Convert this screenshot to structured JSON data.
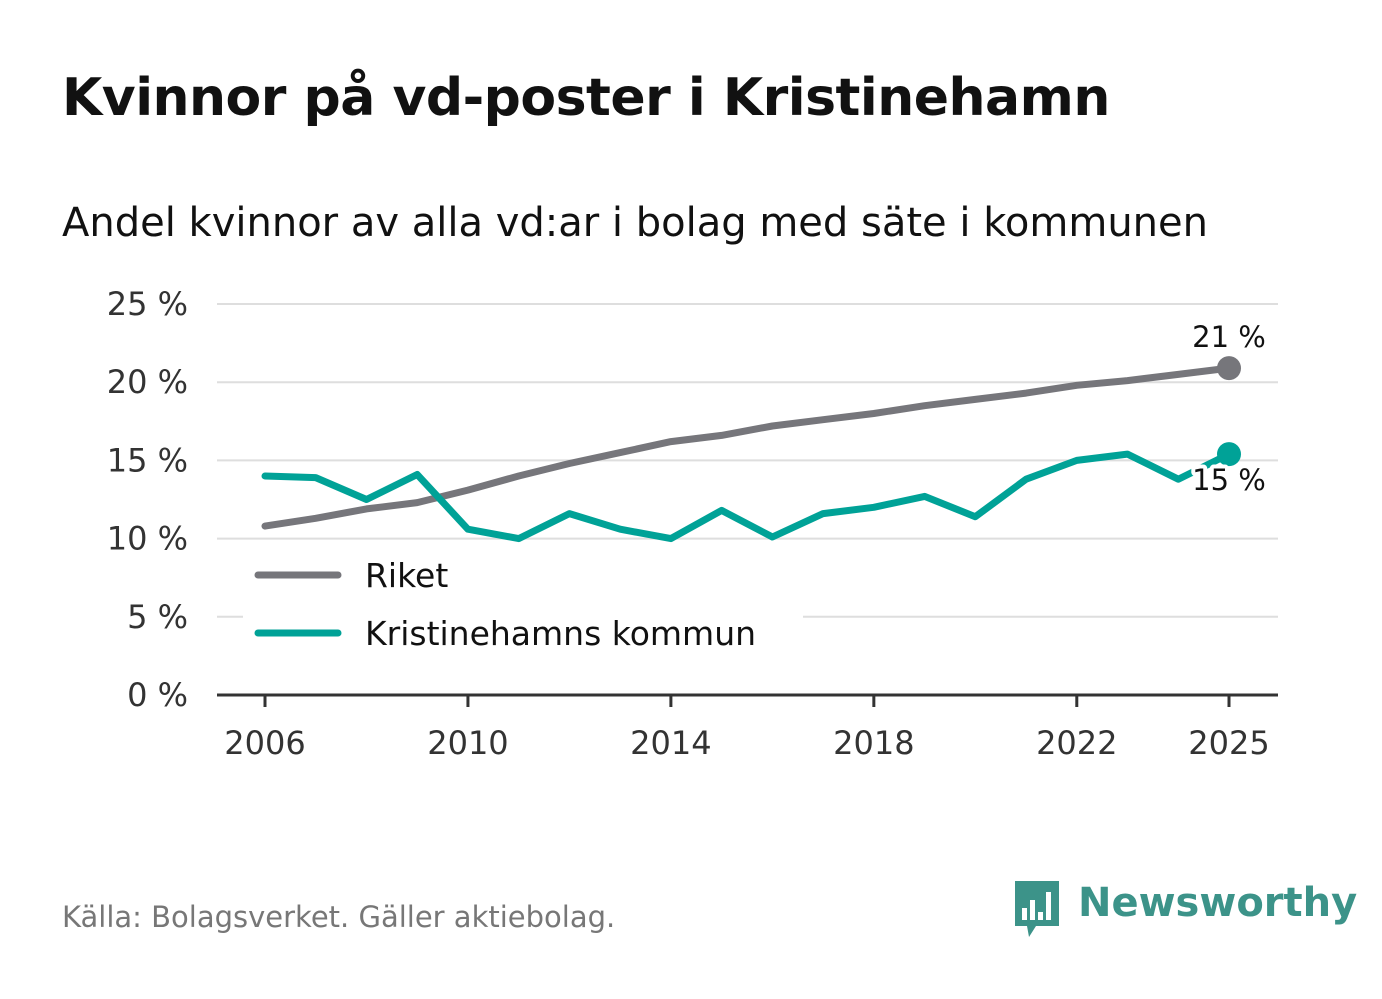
{
  "title": "Kvinnor på vd-poster i Kristinehamn",
  "subtitle": "Andel kvinnor av alla vd:ar i bolag med säte i kommunen",
  "source": "Källa: Bolagsverket. Gäller aktiebolag.",
  "brand": {
    "name": "Newsworthy",
    "logo_icon": "bar-chart-speech-bubble-icon",
    "color": "#3c9389"
  },
  "chart_data": {
    "type": "line",
    "x": [
      2006,
      2007,
      2008,
      2009,
      2010,
      2011,
      2012,
      2013,
      2014,
      2015,
      2016,
      2017,
      2018,
      2019,
      2020,
      2021,
      2022,
      2023,
      2024,
      2025
    ],
    "series": [
      {
        "name": "Riket",
        "color": "#76767b",
        "values": [
          10.8,
          11.3,
          11.9,
          12.3,
          13.1,
          14.0,
          14.8,
          15.5,
          16.2,
          16.6,
          17.2,
          17.6,
          18.0,
          18.5,
          18.9,
          19.3,
          19.8,
          20.1,
          20.5,
          20.9
        ],
        "end_label": "21 %"
      },
      {
        "name": "Kristinehamns kommun",
        "color": "#00a297",
        "values": [
          14.0,
          13.9,
          12.5,
          14.1,
          10.6,
          10.0,
          11.6,
          10.6,
          10.0,
          11.8,
          10.1,
          11.6,
          12.0,
          12.7,
          11.4,
          13.8,
          15.0,
          15.4,
          13.8,
          15.4
        ],
        "end_label": "15 %"
      }
    ],
    "xticks": [
      2006,
      2010,
      2014,
      2018,
      2022,
      2025
    ],
    "xtick_labels": [
      "2006",
      "2010",
      "2014",
      "2018",
      "2022",
      "2025"
    ],
    "yticks": [
      0,
      5,
      10,
      15,
      20,
      25
    ],
    "ytick_labels": [
      "0 %",
      "5 %",
      "10 %",
      "15 %",
      "20 %",
      "25 %"
    ],
    "ylim": [
      0,
      25
    ],
    "xlim": [
      2006,
      2025
    ],
    "grid": true,
    "legend_position": "lower-left",
    "xlabel": "",
    "ylabel": ""
  }
}
